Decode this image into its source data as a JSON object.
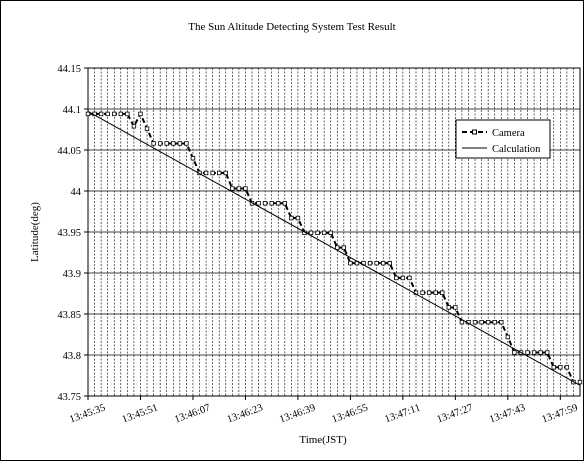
{
  "chart_data": {
    "type": "line",
    "title": "The Sun Altitude Detecting System Test Result",
    "xlabel": "Time(JST)",
    "ylabel": "Latitude(deg)",
    "ylim": [
      43.75,
      44.15
    ],
    "yticks": [
      "43.75",
      "43.8",
      "43.85",
      "43.9",
      "43.95",
      "44",
      "44.05",
      "44.1",
      "44.15"
    ],
    "xlim": [
      "13:45:35",
      "13:48:05"
    ],
    "xticks": [
      "13:45:35",
      "13:45:51",
      "13:46:07",
      "13:46:23",
      "13:46:39",
      "13:46:55",
      "13:47:11",
      "13:47:27",
      "13:47:43",
      "13:47:59"
    ],
    "grid": {
      "vertical_step_seconds": 2,
      "horizontal": true
    },
    "legend": {
      "position": "top-right",
      "entries": [
        "Camera",
        "Calculation"
      ]
    },
    "series": [
      {
        "name": "Camera",
        "style": "dashed-with-markers",
        "x": [
          "13:45:35",
          "13:45:37",
          "13:45:39",
          "13:45:41",
          "13:45:43",
          "13:45:45",
          "13:45:47",
          "13:45:49",
          "13:45:51",
          "13:45:53",
          "13:45:55",
          "13:45:57",
          "13:45:59",
          "13:46:01",
          "13:46:03",
          "13:46:05",
          "13:46:07",
          "13:46:09",
          "13:46:11",
          "13:46:13",
          "13:46:15",
          "13:46:17",
          "13:46:19",
          "13:46:21",
          "13:46:23",
          "13:46:25",
          "13:46:27",
          "13:46:29",
          "13:46:31",
          "13:46:33",
          "13:46:35",
          "13:46:37",
          "13:46:39",
          "13:46:41",
          "13:46:43",
          "13:46:45",
          "13:46:47",
          "13:46:49",
          "13:46:51",
          "13:46:53",
          "13:46:55",
          "13:46:57",
          "13:46:59",
          "13:47:01",
          "13:47:03",
          "13:47:05",
          "13:47:07",
          "13:47:09",
          "13:47:11",
          "13:47:13",
          "13:47:15",
          "13:47:17",
          "13:47:19",
          "13:47:21",
          "13:47:23",
          "13:47:25",
          "13:47:27",
          "13:47:29",
          "13:47:31",
          "13:47:33",
          "13:47:35",
          "13:47:37",
          "13:47:39",
          "13:47:41",
          "13:47:43",
          "13:47:45",
          "13:47:47",
          "13:47:49",
          "13:47:51",
          "13:47:53",
          "13:47:55",
          "13:47:57",
          "13:47:59",
          "13:48:01",
          "13:48:03",
          "13:48:05"
        ],
        "values": [
          44.094,
          44.094,
          44.094,
          44.094,
          44.094,
          44.094,
          44.094,
          44.079,
          44.094,
          44.076,
          44.058,
          44.058,
          44.058,
          44.058,
          44.058,
          44.058,
          44.04,
          44.022,
          44.022,
          44.022,
          44.022,
          44.022,
          44.003,
          44.003,
          44.003,
          43.985,
          43.985,
          43.985,
          43.985,
          43.985,
          43.985,
          43.967,
          43.967,
          43.949,
          43.949,
          43.949,
          43.949,
          43.949,
          43.931,
          43.931,
          43.912,
          43.912,
          43.912,
          43.912,
          43.912,
          43.912,
          43.912,
          43.894,
          43.894,
          43.894,
          43.876,
          43.876,
          43.876,
          43.876,
          43.876,
          43.858,
          43.858,
          43.84,
          43.84,
          43.84,
          43.84,
          43.84,
          43.84,
          43.84,
          43.822,
          43.803,
          43.803,
          43.803,
          43.803,
          43.803,
          43.803,
          43.785,
          43.785,
          43.785,
          43.767,
          43.767
        ]
      },
      {
        "name": "Calculation",
        "style": "solid",
        "x": [
          "13:45:35",
          "13:48:05"
        ],
        "values": [
          44.097,
          43.763
        ]
      }
    ]
  }
}
